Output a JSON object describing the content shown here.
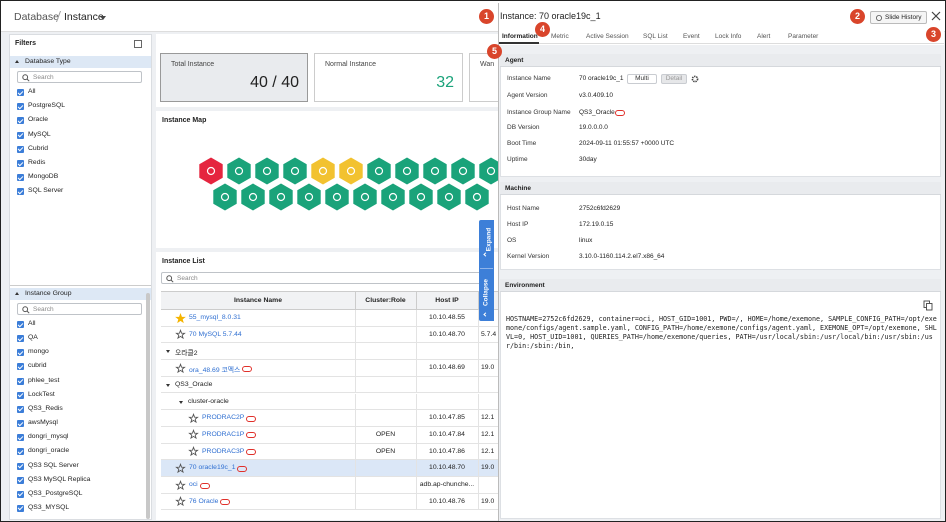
{
  "header": {
    "breadcrumb": "Database",
    "title": "Instance"
  },
  "filters": {
    "title": "Filters",
    "database_type": {
      "title": "Database Type",
      "search": "Search",
      "items": [
        "All",
        "PostgreSQL",
        "Oracle",
        "MySQL",
        "Cubrid",
        "Redis",
        "MongoDB",
        "SQL Server"
      ]
    },
    "instance_group": {
      "title": "Instance Group",
      "search": "Search",
      "items": [
        "All",
        "QA",
        "mongo",
        "cubrid",
        "phlee_test",
        "LockTest",
        "QS3_Redis",
        "awsMysql",
        "dongri_mysql",
        "dongri_oracle",
        "QS3 SQL Server",
        "QS3 MySQL Replica",
        "QS3_PostgreSQL",
        "QS3_MYSQL"
      ]
    }
  },
  "summary": [
    {
      "label": "Total Instance",
      "value": "40 / 40"
    },
    {
      "label": "Normal Instance",
      "value": "32"
    },
    {
      "label": "Wan"
    }
  ],
  "instance_map": {
    "title": "Instance Map"
  },
  "instance_list": {
    "title": "Instance List",
    "search": "Search",
    "columns": [
      "Instance Name",
      "Cluster:Role",
      "Host IP"
    ],
    "rows": [
      {
        "name": "55_mysql_8.0.31",
        "host": "10.10.48.55",
        "starred": true
      },
      {
        "name": "70 MySQL 5.7.44",
        "host": "10.10.48.70",
        "version": "5.7.4"
      },
      {
        "group": "오라클2"
      },
      {
        "name": "ora_48.69 코멕스",
        "host": "10.10.48.69",
        "version": "19.0",
        "tagged": true
      },
      {
        "group": "QS3_Oracle"
      },
      {
        "group": "cluster-oracle",
        "depth": 1
      },
      {
        "name": "PRODRAC2P",
        "host": "10.10.47.85",
        "version": "12.1",
        "tagged": true,
        "depth": 1
      },
      {
        "name": "PRODRAC1P",
        "role": "OPEN",
        "host": "10.10.47.84",
        "version": "12.1",
        "tagged": true,
        "depth": 1
      },
      {
        "name": "PRODRAC3P",
        "role": "OPEN",
        "host": "10.10.47.86",
        "version": "12.1",
        "tagged": true,
        "depth": 1
      },
      {
        "name": "70 oracle19c_1",
        "host": "10.10.48.70",
        "version": "19.0",
        "tagged": true,
        "selected": true
      },
      {
        "name": "oci",
        "host": "adb.ap-chunche...",
        "tagged": true
      },
      {
        "name": "76 Oracle",
        "host": "10.10.48.76",
        "version": "19.0",
        "tagged": true
      }
    ]
  },
  "side_tabs": [
    "Expand",
    "Collapse"
  ],
  "detail": {
    "title": "Instance: 70 oracle19c_1",
    "history_button": "Slide History",
    "tabs": [
      "Information",
      "Metric",
      "Active Session",
      "SQL List",
      "Event",
      "Lock Info",
      "Alert",
      "Parameter"
    ],
    "agent": {
      "title": "Agent",
      "buttons": [
        "Multi",
        "Detail"
      ],
      "fields": [
        {
          "label": "Instance Name",
          "value": "70 oracle19c_1"
        },
        {
          "label": "Agent Version",
          "value": "v3.0.409.10"
        },
        {
          "label": "Instance Group Name",
          "value": "QS3_Oracle"
        },
        {
          "label": "DB Version",
          "value": "19.0.0.0.0"
        },
        {
          "label": "Boot Time",
          "value": "2024-09-11 01:55:57 +0000 UTC"
        },
        {
          "label": "Uptime",
          "value": "30day"
        }
      ]
    },
    "machine": {
      "title": "Machine",
      "fields": [
        {
          "label": "Host Name",
          "value": "2752c6fd2629"
        },
        {
          "label": "Host IP",
          "value": "172.19.0.15"
        },
        {
          "label": "OS",
          "value": "linux"
        },
        {
          "label": "Kernel Version",
          "value": "3.10.0-1160.114.2.el7.x86_64"
        }
      ]
    },
    "environment": {
      "title": "Environment",
      "text": "HOSTNAME=2752c6fd2629, container=oci, HOST_GID=1001, PWD=/, HOME=/home/exemone, SAMPLE_CONFIG_PATH=/opt/exemone/configs/agent.sample.yaml, CONFIG_PATH=/home/exemone/configs/agent.yaml, EXEMONE_OPT=/opt/exemone, SHLVL=0, HOST_UID=1001, QUERIES_PATH=/home/exemone/queries, PATH=/usr/local/sbin:/usr/local/bin:/usr/sbin:/usr/bin:/sbin:/bin,"
    }
  },
  "annotations": [
    "1",
    "2",
    "3",
    "4",
    "5"
  ]
}
